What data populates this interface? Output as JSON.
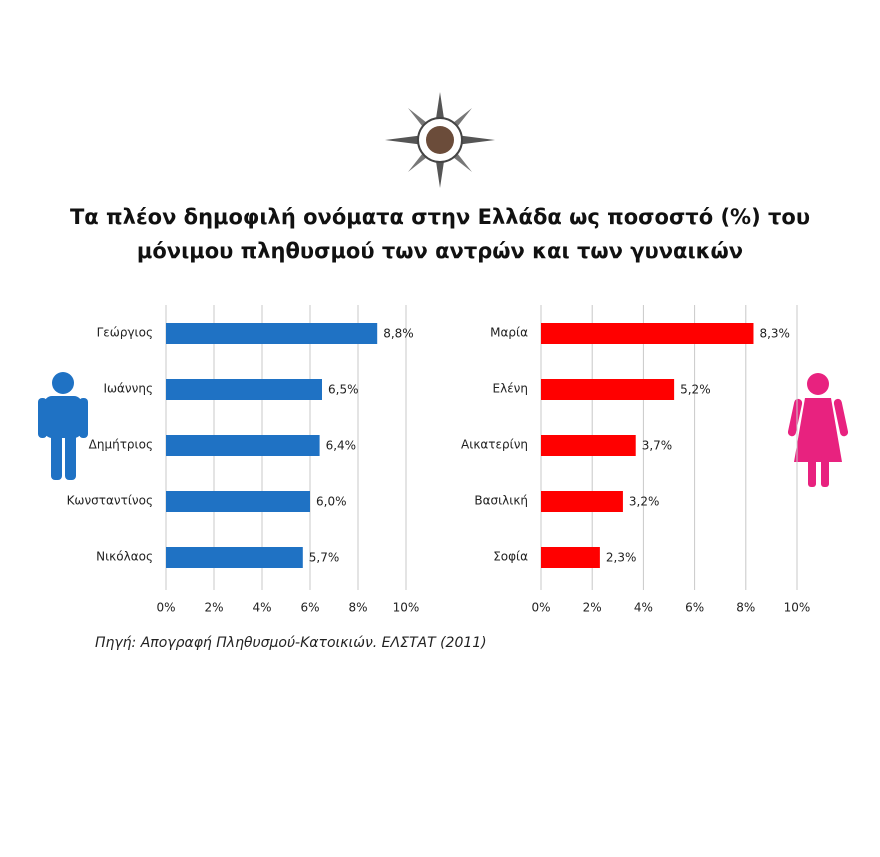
{
  "title": [
    "Τα πλέον δημοφιλή ονόματα στην Ελλάδα ως ποσοστό (%) του",
    "μόνιμου πληθυσμού των αντρών και των γυναικών"
  ],
  "source": "Πηγή: Απογραφή Πληθυσμού-Κατοικιών. ΕΛΣΤΑΤ (2011)",
  "chart_data": [
    {
      "type": "bar",
      "orientation": "horizontal",
      "categories": [
        "Γεώργιος",
        "Ιωάννης",
        "Δημήτριος",
        "Κωνσταντίνος",
        "Νικόλαος"
      ],
      "values": [
        8.8,
        6.5,
        6.4,
        6.0,
        5.7
      ],
      "value_labels": [
        "8,8%",
        "6,5%",
        "6,4%",
        "6,0%",
        "5,7%"
      ],
      "color": "#1f72c4",
      "xlim": [
        0,
        10
      ],
      "xticks": [
        {
          "value": 0,
          "label": "0%"
        },
        {
          "value": 2,
          "label": "2%"
        },
        {
          "value": 4,
          "label": "4%"
        },
        {
          "value": 6,
          "label": "6%"
        },
        {
          "value": 8,
          "label": "8%"
        },
        {
          "value": 10,
          "label": "10%"
        }
      ],
      "grid": true
    },
    {
      "type": "bar",
      "orientation": "horizontal",
      "categories": [
        "Μαρία",
        "Ελένη",
        "Αικατερίνη",
        "Βασιλική",
        "Σοφία"
      ],
      "values": [
        8.3,
        5.2,
        3.7,
        3.2,
        2.3
      ],
      "value_labels": [
        "8,3%",
        "5,2%",
        "3,7%",
        "3,2%",
        "2,3%"
      ],
      "color": "#ff0000",
      "xlim": [
        0,
        10
      ],
      "xticks": [
        {
          "value": 0,
          "label": "0%"
        },
        {
          "value": 2,
          "label": "2%"
        },
        {
          "value": 4,
          "label": "4%"
        },
        {
          "value": 6,
          "label": "6%"
        },
        {
          "value": 8,
          "label": "8%"
        },
        {
          "value": 10,
          "label": "10%"
        }
      ],
      "grid": true
    }
  ]
}
